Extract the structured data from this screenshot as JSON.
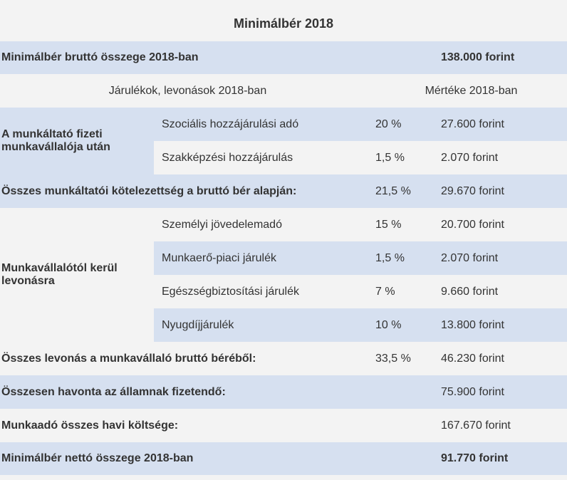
{
  "caption": "Minimálbér 2018",
  "gross": {
    "label": "Minimálbér bruttó összege 2018-ban",
    "value": "138.000 forint"
  },
  "header": {
    "left": "Járulékok, levonások 2018-ban",
    "right": "Mértéke 2018-ban"
  },
  "employer_group": {
    "label": "A munkáltató fizeti munkavállalója után",
    "items": [
      {
        "name": "Szociális hozzájárulási adó",
        "rate": "20 %",
        "amount": "27.600 forint"
      },
      {
        "name": "Szakképzési hozzájárulás",
        "rate": "1,5 %",
        "amount": "2.070 forint"
      }
    ]
  },
  "employer_total": {
    "label": "Összes munkáltatói kötelezettség a bruttó bér alapján:",
    "rate": "21,5 %",
    "amount": "29.670 forint"
  },
  "employee_group": {
    "label": "Munkavállalótól kerül levonásra",
    "items": [
      {
        "name": "Személyi jövedelemadó",
        "rate": "15 %",
        "amount": "20.700 forint"
      },
      {
        "name": "Munkaerő-piaci járulék",
        "rate": "1,5 %",
        "amount": "2.070 forint"
      },
      {
        "name": "Egészségbiztosítási járulék",
        "rate": "7 %",
        "amount": "9.660 forint"
      },
      {
        "name": "Nyugdíjjárulék",
        "rate": "10 %",
        "amount": "13.800 forint"
      }
    ]
  },
  "employee_total": {
    "label": "Összes levonás a munkavállaló bruttó béréből:",
    "rate": "33,5 %",
    "amount": "46.230 forint"
  },
  "state_total": {
    "label": "Összesen havonta az államnak fizetendő:",
    "amount": "75.900 forint"
  },
  "employer_cost": {
    "label": "Munkaadó összes havi költsége:",
    "amount": "167.670 forint"
  },
  "net": {
    "label": "Minimálbér nettó összege 2018-ban",
    "value": "91.770 forint"
  }
}
